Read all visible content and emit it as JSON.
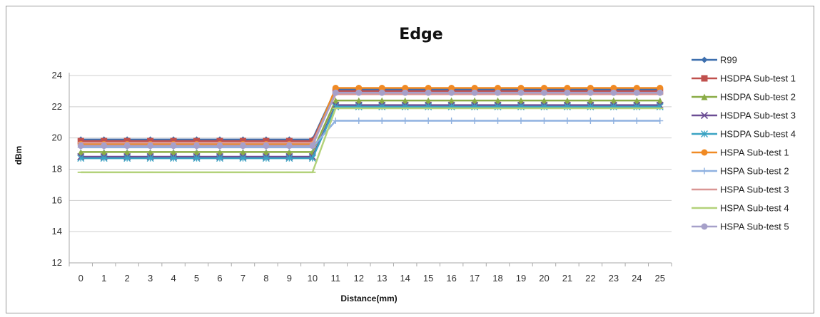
{
  "chart_data": {
    "type": "line",
    "title": "Edge",
    "xlabel": "Distance(mm)",
    "ylabel": "dBm",
    "x": [
      0,
      1,
      2,
      3,
      4,
      5,
      6,
      7,
      8,
      9,
      10,
      11,
      12,
      13,
      14,
      15,
      16,
      17,
      18,
      19,
      20,
      21,
      22,
      23,
      24,
      25
    ],
    "ylim": [
      12,
      24
    ],
    "yticks": [
      12,
      14,
      16,
      18,
      20,
      22,
      24
    ],
    "grid": true,
    "legend_position": "right",
    "series": [
      {
        "name": "R99",
        "color": "#3d6fae",
        "marker": "diamond",
        "before": 19.9,
        "after": 23.1
      },
      {
        "name": "HSDPA Sub-test 1",
        "color": "#c0504d",
        "marker": "square",
        "before": 19.8,
        "after": 23.0
      },
      {
        "name": "HSDPA Sub-test 2",
        "color": "#8aac46",
        "marker": "triangle",
        "before": 19.1,
        "after": 22.4
      },
      {
        "name": "HSDPA Sub-test 3",
        "color": "#6b4d94",
        "marker": "x",
        "before": 18.8,
        "after": 22.1
      },
      {
        "name": "HSDPA Sub-test 4",
        "color": "#3aa3c3",
        "marker": "star",
        "before": 18.7,
        "after": 22.0
      },
      {
        "name": "HSPA Sub-test 1",
        "color": "#f08a24",
        "marker": "circle",
        "before": 19.6,
        "after": 23.2
      },
      {
        "name": "HSPA Sub-test 2",
        "color": "#8fb1e0",
        "marker": "plus",
        "before": 19.4,
        "after": 21.1
      },
      {
        "name": "HSPA Sub-test 3",
        "color": "#d99694",
        "marker": "dash",
        "before": 19.7,
        "after": 22.8
      },
      {
        "name": "HSPA Sub-test 4",
        "color": "#b3d27a",
        "marker": "dash",
        "before": 17.8,
        "after": 21.9
      },
      {
        "name": "HSPA Sub-test 5",
        "color": "#a6a0c9",
        "marker": "circle",
        "before": 19.5,
        "after": 22.9
      }
    ]
  }
}
